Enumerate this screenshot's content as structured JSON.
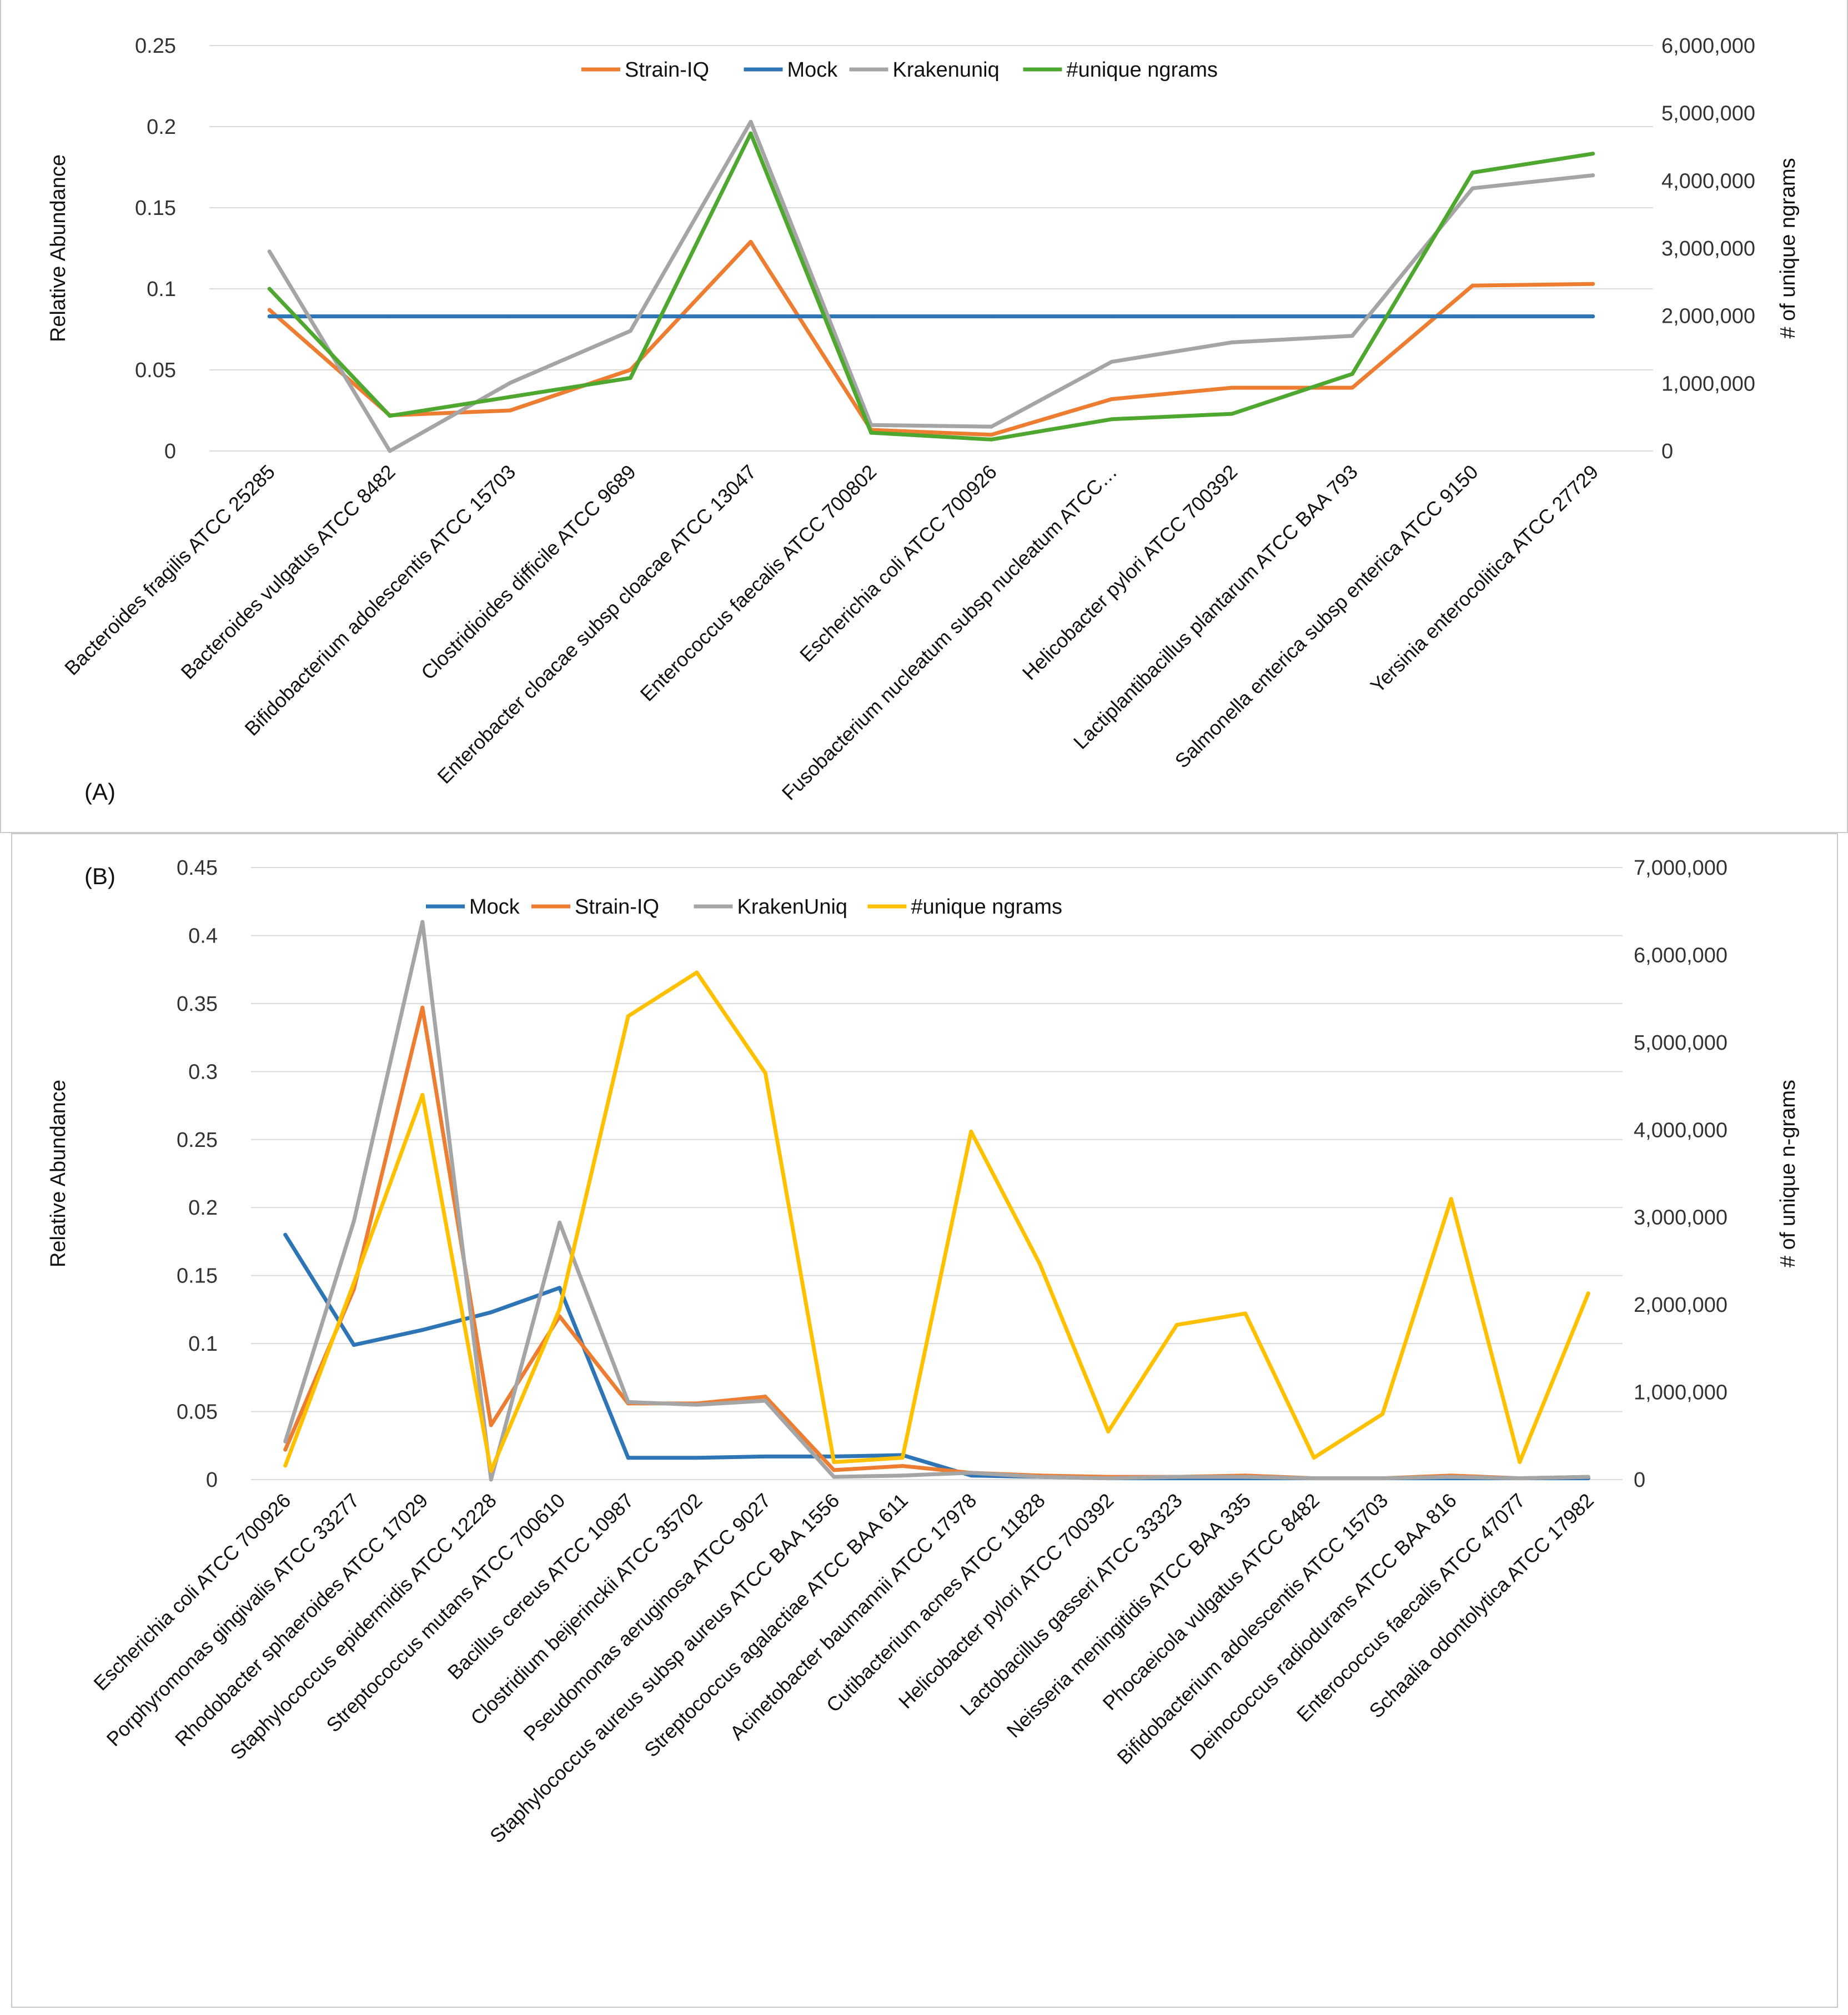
{
  "chart_data": [
    {
      "panel": "(A)",
      "type": "line",
      "ylabel_left": "Relative Abundance",
      "ylabel_right": "# of unique ngrams",
      "ylim_left": [
        0,
        0.25
      ],
      "ylim_right": [
        0,
        6000000
      ],
      "left_ticks": [
        "0",
        "0.05",
        "0.1",
        "0.15",
        "0.2",
        "0.25"
      ],
      "right_ticks": [
        "0",
        "1,000,000",
        "2,000,000",
        "3,000,000",
        "4,000,000",
        "5,000,000",
        "6,000,000"
      ],
      "legend_position": "top-center",
      "categories": [
        "Bacteroides fragilis ATCC 25285",
        "Bacteroides vulgatus ATCC 8482",
        "Bifidobacterium adolescentis ATCC 15703",
        "Clostridioides difficile ATCC 9689",
        "Enterobacter cloacae subsp cloacae ATCC 13047",
        "Enterococcus faecalis ATCC 700802",
        "Escherichia coli ATCC 700926",
        "Fusobacterium nucleatum subsp nucleatum ATCC…",
        "Helicobacter pylori ATCC 700392",
        "Lactiplantibacillus plantarum ATCC BAA 793",
        "Salmonella enterica subsp enterica ATCC 9150",
        "Yersinia enterocolitica ATCC 27729"
      ],
      "series": [
        {
          "name": "Strain-IQ",
          "color": "#ED7D31",
          "axis": "left",
          "values": [
            0.087,
            0.022,
            0.025,
            0.05,
            0.129,
            0.013,
            0.01,
            0.032,
            0.039,
            0.039,
            0.102,
            0.103
          ]
        },
        {
          "name": "Mock",
          "color": "#2E75B6",
          "axis": "left",
          "values": [
            0.083,
            0.083,
            0.083,
            0.083,
            0.083,
            0.083,
            0.083,
            0.083,
            0.083,
            0.083,
            0.083,
            0.083
          ]
        },
        {
          "name": "Krakenuniq",
          "color": "#A5A5A5",
          "axis": "left",
          "values": [
            0.123,
            0.0,
            0.042,
            0.074,
            0.203,
            0.016,
            0.015,
            0.055,
            0.067,
            0.071,
            0.162,
            0.17
          ]
        },
        {
          "name": "#unique ngrams",
          "color": "#4EA72E",
          "axis": "right",
          "values": [
            2400000,
            520000,
            800000,
            1080000,
            4700000,
            270000,
            170000,
            470000,
            550000,
            1140000,
            4120000,
            4400000
          ]
        }
      ]
    },
    {
      "panel": "(B)",
      "type": "line",
      "ylabel_left": "Relative Abundance",
      "ylabel_right": "# of unique n-grams",
      "ylim_left": [
        0,
        0.45
      ],
      "ylim_right": [
        0,
        7000000
      ],
      "left_ticks": [
        "0",
        "0.05",
        "0.1",
        "0.15",
        "0.2",
        "0.25",
        "0.3",
        "0.35",
        "0.4",
        "0.45"
      ],
      "right_ticks": [
        "0",
        "1,000,000",
        "2,000,000",
        "3,000,000",
        "4,000,000",
        "5,000,000",
        "6,000,000",
        "7,000,000"
      ],
      "legend_position": "top-left",
      "categories": [
        "Escherichia coli ATCC 700926",
        "Porphyromonas gingivalis ATCC 33277",
        "Rhodobacter sphaeroides ATCC 17029",
        "Staphylococcus epidermidis ATCC 12228",
        "Streptococcus mutans ATCC 700610",
        "Bacillus cereus ATCC 10987",
        "Clostridium beijerinckii ATCC 35702",
        "Pseudomonas aeruginosa ATCC 9027",
        "Staphylococcus aureus subsp aureus ATCC BAA 1556",
        "Streptococcus agalactiae ATCC BAA 611",
        "Acinetobacter baumannii ATCC 17978",
        "Cutibacterium acnes ATCC 11828",
        "Helicobacter pylori ATCC 700392",
        "Lactobacillus gasseri ATCC 33323",
        "Neisseria meningitidis ATCC BAA 335",
        "Phocaeicola vulgatus ATCC 8482",
        "Bifidobacterium adolescentis ATCC 15703",
        "Deinococcus radiodurans ATCC BAA 816",
        "Enterococcus faecalis ATCC 47077",
        "Schaalia odontolytica ATCC 17982"
      ],
      "series": [
        {
          "name": "Mock",
          "color": "#2E75B6",
          "axis": "left",
          "values": [
            0.18,
            0.099,
            0.11,
            0.123,
            0.141,
            0.016,
            0.016,
            0.017,
            0.017,
            0.018,
            0.003,
            0.002,
            0.001,
            0.001,
            0.001,
            0.001,
            0.001,
            0.001,
            0.001,
            0.001
          ]
        },
        {
          "name": "Strain-IQ",
          "color": "#ED7D31",
          "axis": "left",
          "values": [
            0.022,
            0.14,
            0.347,
            0.04,
            0.12,
            0.056,
            0.056,
            0.061,
            0.007,
            0.01,
            0.005,
            0.003,
            0.002,
            0.002,
            0.003,
            0.001,
            0.001,
            0.003,
            0.001,
            0.002
          ]
        },
        {
          "name": "KrakenUniq",
          "color": "#A5A5A5",
          "axis": "left",
          "values": [
            0.028,
            0.19,
            0.41,
            0.0,
            0.189,
            0.057,
            0.055,
            0.058,
            0.002,
            0.003,
            0.005,
            0.002,
            0.001,
            0.002,
            0.002,
            0.001,
            0.001,
            0.002,
            0.001,
            0.002
          ]
        },
        {
          "name": "#unique ngrams",
          "color": "#FFC000",
          "axis": "right",
          "values": [
            160000,
            2250000,
            4400000,
            100000,
            1950000,
            5300000,
            5800000,
            4650000,
            200000,
            250000,
            3980000,
            2470000,
            550000,
            1770000,
            1900000,
            250000,
            750000,
            3210000,
            200000,
            2130000
          ]
        }
      ]
    }
  ]
}
